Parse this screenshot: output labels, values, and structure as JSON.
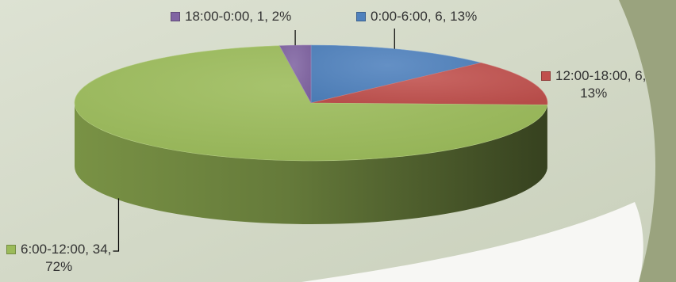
{
  "chart_data": {
    "type": "pie",
    "title": "",
    "three_d": true,
    "legend": "none",
    "slices": [
      {
        "name": "0:00-6:00",
        "value": 6,
        "percent": "13%",
        "color": "#4f81bd",
        "label_line1": "0:00-6:00, 6, 13%",
        "label_line2": ""
      },
      {
        "name": "12:00-18:00",
        "value": 6,
        "percent": "13%",
        "color": "#c0504d",
        "label_line1": "12:00-18:00, 6,",
        "label_line2": "13%"
      },
      {
        "name": "6:00-12:00",
        "value": 34,
        "percent": "72%",
        "color": "#9bbb59",
        "label_line1": "6:00-12:00, 34,",
        "label_line2": "72%"
      },
      {
        "name": "18:00-0:00",
        "value": 1,
        "percent": "2%",
        "color": "#8064a2",
        "label_line1": "18:00-0:00, 1, 2%",
        "label_line2": ""
      }
    ]
  }
}
